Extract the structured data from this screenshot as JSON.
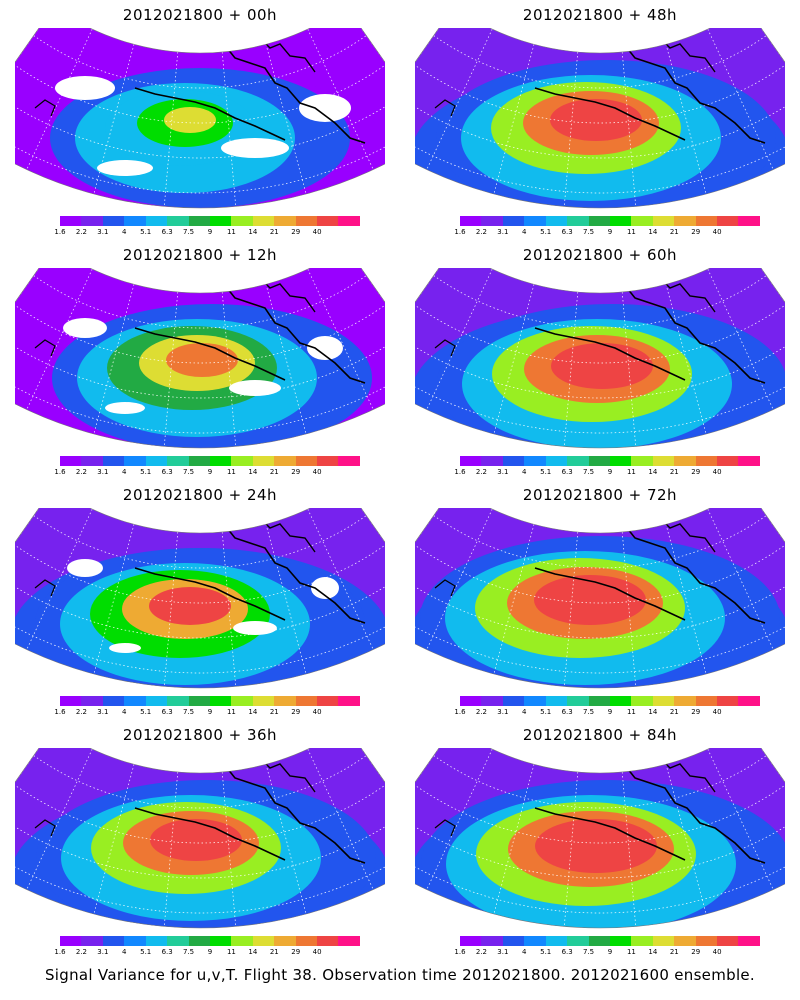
{
  "panels": [
    {
      "title": "2012021800 + 00h"
    },
    {
      "title": "2012021800 + 48h"
    },
    {
      "title": "2012021800 + 12h"
    },
    {
      "title": "2012021800 + 60h"
    },
    {
      "title": "2012021800 + 24h"
    },
    {
      "title": "2012021800 + 72h"
    },
    {
      "title": "2012021800 + 36h"
    },
    {
      "title": "2012021800 + 84h"
    }
  ],
  "colorbar": {
    "labels": [
      "1.6",
      "2.2",
      "3.1",
      "4",
      "5.1",
      "6.3",
      "7.5",
      "9",
      "11",
      "14",
      "21",
      "29",
      "40"
    ],
    "colors": [
      "#9900ff",
      "#7722ee",
      "#2255ee",
      "#1188ff",
      "#11bbee",
      "#22cc99",
      "#22aa44",
      "#00dd00",
      "#99ee22",
      "#dddd33",
      "#eeaa33",
      "#ee7733",
      "#ee4444",
      "#ff1188"
    ]
  },
  "caption": "Signal Variance for u,v,T. Flight 38. Observation time 2012021800. 2012021600 ensemble."
}
